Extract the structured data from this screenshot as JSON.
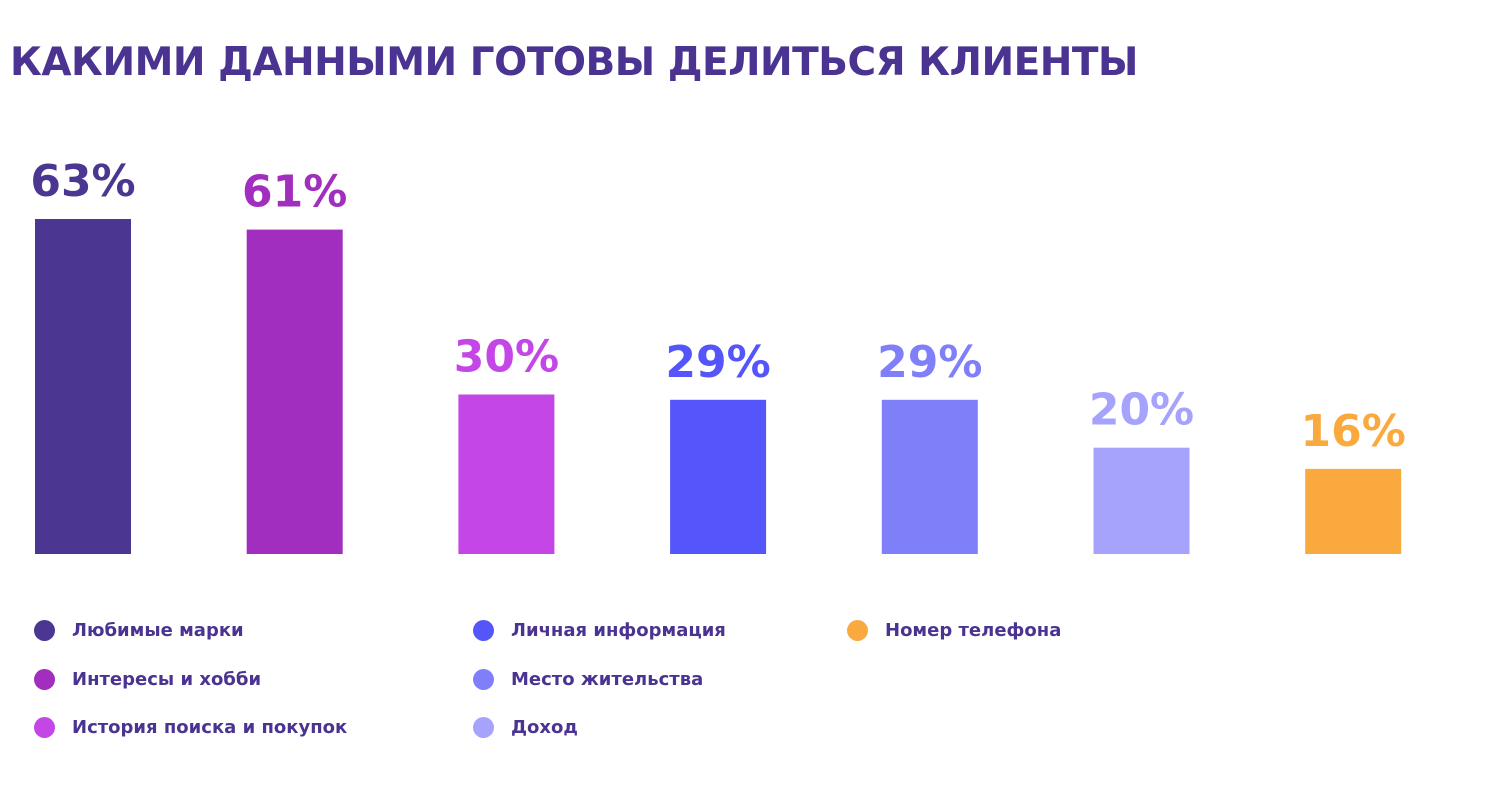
{
  "title": "КАКИМИ ДАННЫМИ ГОТОВЫ ДЕЛИТЬСЯ КЛИЕНТЫ",
  "colors": {
    "title": "#4b3491",
    "legend_text": "#4b3491"
  },
  "chart_data": {
    "type": "bar",
    "title": "КАКИМИ ДАННЫМИ ГОТОВЫ ДЕЛИТЬСЯ КЛИЕНТЫ",
    "categories": [
      "Любимые марки",
      "Интересы и хобби",
      "История поиска и покупок",
      "Личная информация",
      "Место жительства",
      "Доход",
      "Номер телефона"
    ],
    "values": [
      63,
      61,
      30,
      29,
      29,
      20,
      16
    ],
    "value_labels": [
      "63%",
      "61%",
      "30%",
      "29%",
      "29%",
      "20%",
      "16%"
    ],
    "colors": [
      "#4b3691",
      "#a12ebe",
      "#c546e6",
      "#5455fa",
      "#7f7ffa",
      "#a5a3fb",
      "#f9a93e"
    ],
    "unit": "%",
    "xlabel": "",
    "ylabel": "",
    "ylim": [
      0,
      63
    ],
    "grid": false,
    "axes_visible": false,
    "legend_position": "bottom-left"
  }
}
